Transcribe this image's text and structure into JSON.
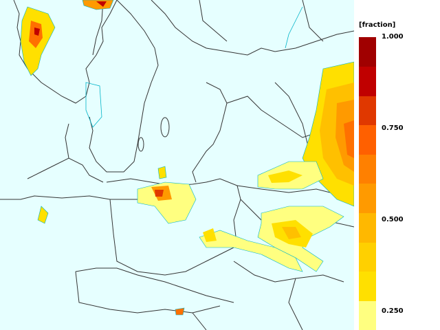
{
  "map": {
    "ocean_color": "#e6ffff",
    "border_color": "#333333",
    "contour_color": "#00b4c8",
    "field_colors": [
      "#ffff80",
      "#ffe000",
      "#ffc000",
      "#ff9a00",
      "#ff7000",
      "#e03800",
      "#c00000"
    ]
  },
  "legend": {
    "unit": "[fraction]",
    "segments": [
      "#ffff80",
      "#ffe000",
      "#ffd000",
      "#ffb800",
      "#ff9a00",
      "#ff8000",
      "#ff6000",
      "#e03800",
      "#c00000",
      "#a00000"
    ],
    "ticks": [
      {
        "value": 1.0,
        "label": "1.000"
      },
      {
        "value": 0.75,
        "label": "0.750"
      },
      {
        "value": 0.5,
        "label": "0.500"
      },
      {
        "value": 0.25,
        "label": "0.250"
      }
    ]
  }
}
